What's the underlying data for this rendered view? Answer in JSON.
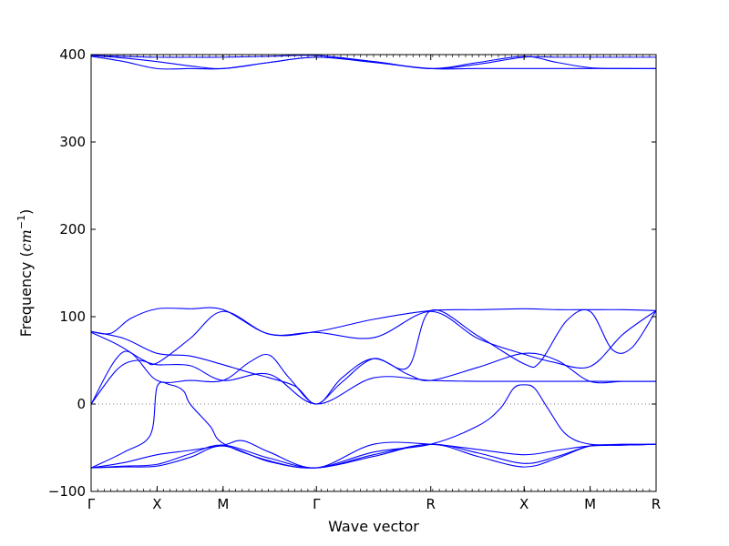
{
  "chart_data": {
    "type": "line",
    "title": "",
    "xlabel": "Wave vector",
    "ylabel": {
      "prefix": "Frequency (",
      "unit": "cm",
      "exponent": "−1",
      "suffix": ")"
    },
    "ylim": [
      -100,
      400
    ],
    "yticks": [
      -100,
      0,
      100,
      200,
      300,
      400
    ],
    "path_ticks": [
      {
        "label": "Γ",
        "position": 0.0
      },
      {
        "label": "X",
        "position": 0.5
      },
      {
        "label": "M",
        "position": 1.0
      },
      {
        "label": "Γ",
        "position": 1.707
      },
      {
        "label": "R",
        "position": 2.573
      },
      {
        "label": "X",
        "position": 3.28
      },
      {
        "label": "M",
        "position": 3.78
      },
      {
        "label": "R",
        "position": 4.28
      }
    ],
    "xlim": [
      0,
      4.28
    ],
    "zero_line": true,
    "grid": false,
    "legend": "none",
    "line_color": "#0000ff",
    "zero_line_color": "#7f7f7f",
    "series": [
      {
        "x": [
          0,
          0.25,
          0.5,
          0.75,
          1.0,
          1.35,
          1.707,
          2.14,
          2.573,
          2.93,
          3.28,
          3.53,
          3.78,
          4.03,
          4.28
        ],
        "y": [
          399,
          398,
          397,
          397,
          397,
          398,
          399,
          392,
          384,
          389,
          397,
          397,
          397,
          397,
          397
        ]
      },
      {
        "x": [
          0,
          0.25,
          0.5,
          0.75,
          1.0,
          1.35,
          1.707,
          2.14,
          2.573,
          2.93,
          3.28,
          3.53,
          3.78,
          4.03,
          4.28
        ],
        "y": [
          399,
          396,
          392,
          387,
          384,
          391,
          397,
          391,
          384,
          384,
          384,
          384,
          384,
          384,
          384
        ]
      },
      {
        "x": [
          0,
          0.25,
          0.5,
          0.75,
          1.0,
          1.35,
          1.707,
          2.14,
          2.573,
          2.93,
          3.28,
          3.53,
          3.78,
          4.03,
          4.28
        ],
        "y": [
          398,
          392,
          384,
          384,
          384,
          391,
          397,
          392,
          384,
          391,
          398,
          391,
          385,
          384,
          384
        ]
      },
      {
        "x": [
          0,
          0.15,
          0.3,
          0.5,
          0.75,
          1.0,
          1.35,
          1.707,
          2.14,
          2.573,
          2.93,
          3.28,
          3.53,
          3.78,
          4.03,
          4.28
        ],
        "y": [
          83,
          81,
          98,
          109,
          109,
          108,
          80,
          83,
          97,
          107,
          108,
          109,
          108,
          108,
          108,
          107
        ]
      },
      {
        "x": [
          0,
          0.25,
          0.5,
          0.75,
          1.0,
          1.2,
          1.35,
          1.55,
          1.707,
          1.9,
          2.14,
          2.4,
          2.573,
          2.93,
          3.28,
          3.4,
          3.6,
          3.78,
          3.95,
          4.1,
          4.28
        ],
        "y": [
          83,
          75,
          58,
          55,
          45,
          36,
          30,
          20,
          0,
          25,
          52,
          42,
          107,
          78,
          46,
          48,
          95,
          106,
          62,
          65,
          107
        ]
      },
      {
        "x": [
          0,
          0.2,
          0.4,
          0.5,
          0.75,
          1.0,
          1.35,
          1.707,
          2.14,
          2.573,
          2.93,
          3.28,
          3.5,
          3.78,
          4.03,
          4.28
        ],
        "y": [
          82,
          68,
          50,
          47,
          75,
          106,
          80,
          82,
          76,
          106,
          75,
          57,
          48,
          43,
          80,
          107
        ]
      },
      {
        "x": [
          0,
          0.25,
          0.5,
          0.75,
          1.0,
          1.2,
          1.35,
          1.5,
          1.707,
          1.9,
          2.14,
          2.4,
          2.573,
          2.93,
          3.28,
          3.53,
          3.78,
          4.03,
          4.28
        ],
        "y": [
          0,
          60,
          27,
          27,
          27,
          48,
          56,
          30,
          0,
          30,
          52,
          34,
          27,
          42,
          58,
          50,
          26,
          26,
          26
        ]
      },
      {
        "x": [
          0,
          0.2,
          0.35,
          0.5,
          0.75,
          1.0,
          1.35,
          1.707,
          2.14,
          2.573,
          2.93,
          3.28,
          3.53,
          3.78,
          4.03,
          4.28
        ],
        "y": [
          0,
          40,
          50,
          45,
          44,
          27,
          34,
          0,
          30,
          27,
          26,
          26,
          26,
          26,
          26,
          26
        ]
      },
      {
        "x": [
          0,
          0.25,
          0.45,
          0.5,
          0.6,
          0.7,
          0.75,
          0.9,
          1.0,
          1.35,
          1.707,
          2.14,
          2.573,
          2.93,
          3.1,
          3.2,
          3.28,
          3.36,
          3.46,
          3.6,
          3.78,
          4.03,
          4.28
        ],
        "y": [
          -73,
          -55,
          -35,
          20,
          22,
          15,
          0,
          -25,
          -45,
          -65,
          -73,
          -55,
          -46,
          -25,
          -5,
          18,
          22,
          18,
          -5,
          -35,
          -46,
          -46,
          -46
        ]
      },
      {
        "x": [
          0,
          0.25,
          0.5,
          0.75,
          1.0,
          1.15,
          1.35,
          1.707,
          2.14,
          2.573,
          2.93,
          3.28,
          3.53,
          3.78,
          4.03,
          4.28
        ],
        "y": [
          -73,
          -67,
          -58,
          -53,
          -47,
          -42,
          -55,
          -73,
          -46,
          -46,
          -52,
          -58,
          -53,
          -48,
          -47,
          -46
        ]
      },
      {
        "x": [
          0,
          0.25,
          0.5,
          0.75,
          1.0,
          1.35,
          1.707,
          2.14,
          2.573,
          2.93,
          3.28,
          3.53,
          3.78,
          4.03,
          4.28
        ],
        "y": [
          -73,
          -71,
          -69,
          -57,
          -47,
          -62,
          -73,
          -58,
          -46,
          -56,
          -68,
          -60,
          -48,
          -47,
          -46
        ]
      },
      {
        "x": [
          0,
          0.25,
          0.5,
          0.75,
          1.0,
          1.35,
          1.707,
          2.14,
          2.573,
          2.93,
          3.28,
          3.53,
          3.78,
          4.03,
          4.28
        ],
        "y": [
          -73,
          -72,
          -71,
          -61,
          -48,
          -66,
          -73,
          -60,
          -46,
          -60,
          -72,
          -62,
          -48,
          -47,
          -46
        ]
      }
    ]
  }
}
